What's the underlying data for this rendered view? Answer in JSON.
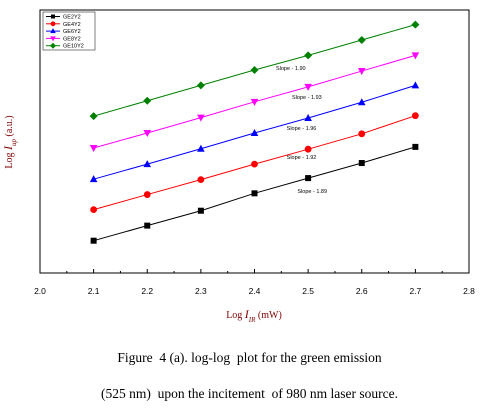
{
  "chart_data": {
    "type": "line",
    "x": [
      2.1,
      2.2,
      2.3,
      2.4,
      2.5,
      2.6,
      2.7
    ],
    "xlim": [
      2.0,
      2.8
    ],
    "xticks": [
      "2.0",
      "2.1",
      "2.2",
      "2.3",
      "2.4",
      "2.5",
      "2.6",
      "2.7",
      "2.8"
    ],
    "xlabel": {
      "prefix": "Log ",
      "var": "I",
      "sub": "IR",
      "suffix": " (mW)"
    },
    "ylabel": {
      "prefix": "Log ",
      "var": "I",
      "sub": "up",
      "suffix": " (a.u.)"
    },
    "ylim": [
      0,
      17.1
    ],
    "yticks_shown": false,
    "grid": false,
    "legend_position": "top-left",
    "series": [
      {
        "name": "GE2Y2",
        "color": "#000000",
        "marker": "square",
        "values": [
          2.1,
          3.08,
          4.05,
          5.18,
          6.17,
          7.15,
          8.2
        ],
        "annotation": {
          "text": "Slope - 1.89",
          "at_x": 2.48,
          "at_y": 5.2
        }
      },
      {
        "name": "GE4Y2",
        "color": "#ff0000",
        "marker": "circle",
        "values": [
          4.12,
          5.1,
          6.07,
          7.08,
          8.05,
          9.05,
          10.23
        ],
        "annotation": {
          "text": "Slope - 1.92",
          "at_x": 2.46,
          "at_y": 7.4
        }
      },
      {
        "name": "GE6Y2",
        "color": "#0000ff",
        "marker": "triangle-up",
        "values": [
          6.1,
          7.08,
          8.08,
          9.1,
          10.08,
          11.1,
          12.2
        ],
        "annotation": {
          "text": "Slope - 1.96",
          "at_x": 2.46,
          "at_y": 9.3
        }
      },
      {
        "name": "GE8Y2",
        "color": "#ff00ff",
        "marker": "triangle-down",
        "values": [
          8.13,
          9.1,
          10.1,
          11.13,
          12.1,
          13.13,
          14.15
        ],
        "annotation": {
          "text": "Slope - 1.93",
          "at_x": 2.47,
          "at_y": 11.3
        }
      },
      {
        "name": "GE10Y2",
        "color": "#008000",
        "marker": "diamond",
        "values": [
          10.2,
          11.2,
          12.2,
          13.2,
          14.15,
          15.15,
          16.15
        ],
        "annotation": {
          "text": "Slope - 1.90",
          "at_x": 2.44,
          "at_y": 13.2
        }
      }
    ]
  },
  "caption": {
    "line1": "Figure  4 (a). log-log  plot for the green emission",
    "line2": "(525 nm)  upon the incitement  of 980 nm laser source."
  }
}
